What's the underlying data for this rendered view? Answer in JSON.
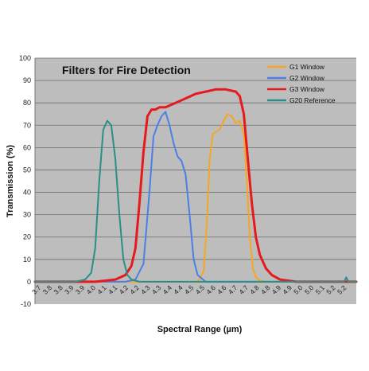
{
  "chart_data": {
    "type": "line",
    "title": "Filters for Fire Detection",
    "xlabel": "Spectral Range (µm)",
    "ylabel": "Transmission (%)",
    "xlim": [
      3.7,
      5.3
    ],
    "ylim": [
      -10,
      100
    ],
    "y_ticks": [
      -10,
      0,
      10,
      20,
      30,
      40,
      50,
      60,
      70,
      80,
      90,
      100
    ],
    "x_tick_labels": [
      "3.7",
      "3.8",
      "3.8",
      "3.9",
      "3.9",
      "4.0",
      "4.1",
      "4.1",
      "4.2",
      "4.2",
      "4.3",
      "4.3",
      "4.4",
      "4.4",
      "4.5",
      "4.5",
      "4.6",
      "4.6",
      "4.7",
      "4.7",
      "4.8",
      "4.8",
      "4.9",
      "4.9",
      "5.0",
      "5.0",
      "5.1",
      "5.2",
      "5.2"
    ],
    "grid": true,
    "legend_position": "top-right",
    "series": [
      {
        "name": "G1 Window",
        "color": "#f5a623",
        "x": [
          3.7,
          4.5,
          4.52,
          4.54,
          4.555,
          4.57,
          4.585,
          4.6,
          4.62,
          4.64,
          4.66,
          4.68,
          4.7,
          4.72,
          4.74,
          4.755,
          4.77,
          4.785,
          4.8,
          4.82,
          4.85,
          5.3
        ],
        "y": [
          0,
          0,
          1,
          5,
          25,
          55,
          66,
          67,
          68,
          72,
          75,
          74,
          71,
          72,
          66,
          45,
          20,
          6,
          2,
          0.5,
          0,
          0
        ]
      },
      {
        "name": "G2 Window",
        "color": "#4a7fe8",
        "x": [
          3.7,
          4.15,
          4.2,
          4.24,
          4.27,
          4.29,
          4.31,
          4.33,
          4.35,
          4.37,
          4.39,
          4.41,
          4.43,
          4.45,
          4.47,
          4.49,
          4.51,
          4.55,
          5.3
        ],
        "y": [
          0,
          0,
          1,
          8,
          40,
          65,
          70,
          74,
          76,
          70,
          62,
          56,
          54,
          48,
          30,
          10,
          3,
          0,
          0
        ]
      },
      {
        "name": "G3 Window",
        "color": "#e8191c",
        "x": [
          3.7,
          4.0,
          4.1,
          4.15,
          4.18,
          4.2,
          4.22,
          4.24,
          4.26,
          4.28,
          4.3,
          4.32,
          4.35,
          4.4,
          4.45,
          4.5,
          4.55,
          4.6,
          4.65,
          4.7,
          4.72,
          4.74,
          4.76,
          4.78,
          4.8,
          4.82,
          4.85,
          4.88,
          4.92,
          5.0,
          5.3
        ],
        "y": [
          0,
          0,
          1,
          3,
          7,
          15,
          35,
          58,
          74,
          77,
          77,
          78,
          78,
          80,
          82,
          84,
          85,
          86,
          86,
          85,
          83,
          75,
          55,
          35,
          20,
          12,
          6,
          3,
          1,
          0,
          0
        ]
      },
      {
        "name": "G20 Reference",
        "color": "#2a8f88",
        "x": [
          3.7,
          3.9,
          3.95,
          3.98,
          4.0,
          4.02,
          4.04,
          4.06,
          4.08,
          4.1,
          4.12,
          4.14,
          4.16,
          4.18,
          4.2,
          4.22,
          4.25,
          5.24,
          5.25,
          5.26,
          5.3
        ],
        "y": [
          0,
          0,
          1,
          4,
          15,
          45,
          68,
          72,
          70,
          55,
          30,
          10,
          3,
          1,
          0.5,
          0,
          0,
          0,
          2,
          0,
          0
        ]
      }
    ]
  }
}
